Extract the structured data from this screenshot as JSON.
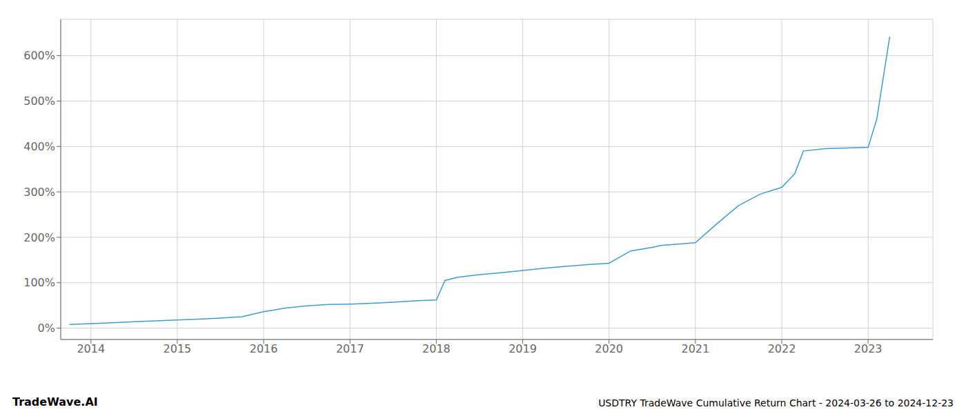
{
  "chart_data": {
    "type": "line",
    "title": "USDTRY TradeWave Cumulative Return Chart - 2024-03-26 to 2024-12-23",
    "annotations": [
      "TradeWave.AI"
    ],
    "x": [
      2013.75,
      2014.0,
      2014.25,
      2014.5,
      2014.75,
      2015.0,
      2015.25,
      2015.5,
      2015.75,
      2016.0,
      2016.25,
      2016.5,
      2016.75,
      2017.0,
      2017.15,
      2017.3,
      2017.5,
      2017.75,
      2018.0,
      2018.1,
      2018.25,
      2018.5,
      2018.75,
      2019.0,
      2019.25,
      2019.5,
      2019.75,
      2020.0,
      2020.25,
      2020.5,
      2020.6,
      2021.0,
      2021.25,
      2021.5,
      2021.75,
      2022.0,
      2022.15,
      2022.25,
      2022.5,
      2023.0,
      2023.1,
      2023.25
    ],
    "values": [
      8,
      10,
      12,
      14,
      16,
      18,
      20,
      22,
      25,
      36,
      44,
      49,
      52,
      53,
      54,
      55,
      57,
      60,
      62,
      105,
      112,
      118,
      122,
      127,
      132,
      136,
      140,
      143,
      170,
      178,
      182,
      188,
      230,
      270,
      295,
      310,
      340,
      390,
      395,
      398,
      460,
      642
    ],
    "color": "#3d9cd3",
    "xlim": [
      2013.65,
      2023.75
    ],
    "ylim": [
      -25,
      680
    ],
    "xticks": [
      2014,
      2015,
      2016,
      2017,
      2018,
      2019,
      2020,
      2021,
      2022,
      2023
    ],
    "yticks": [
      {
        "value": 0,
        "label": "0%"
      },
      {
        "value": 100,
        "label": "100%"
      },
      {
        "value": 200,
        "label": "200%"
      },
      {
        "value": 300,
        "label": "300%"
      },
      {
        "value": 400,
        "label": "400%"
      },
      {
        "value": 500,
        "label": "500%"
      },
      {
        "value": 600,
        "label": "600%"
      }
    ],
    "grid": true
  }
}
